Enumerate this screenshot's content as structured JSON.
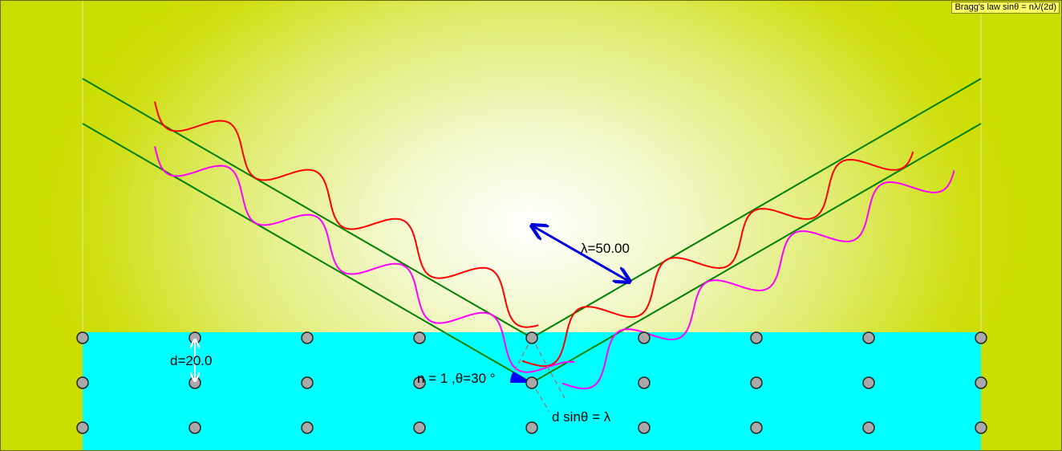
{
  "title": "Bragg's law sinθ = nλ/(2d)",
  "labels": {
    "wavelength": "λ=50.00",
    "spacing": "d=20.0",
    "order_angle": "n = 1 ,θ=30 °",
    "path_difference": "d sinθ = λ"
  },
  "parameters": {
    "wavelength": 50.0,
    "d": 20.0,
    "n": 1,
    "theta_deg": 30
  },
  "colors": {
    "background": "#cadd00",
    "crystal": "#00ffff",
    "rays": "#008000",
    "wave_top": "#ff0000",
    "wave_bottom": "#ff00ff",
    "wavelength_arrow": "#0000dd",
    "atom": "#a8a8a8"
  },
  "lattice": {
    "rows": 3,
    "columns": 9
  }
}
